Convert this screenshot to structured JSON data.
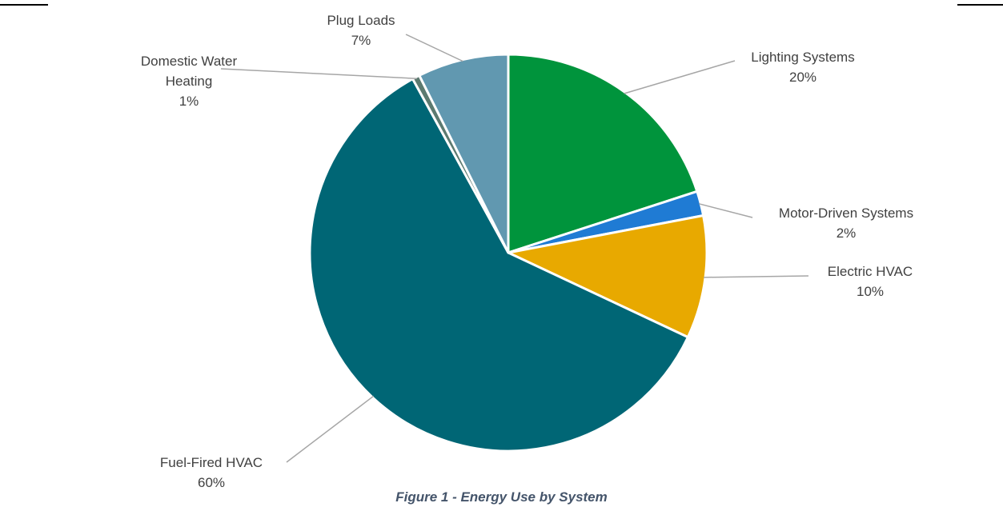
{
  "caption": "Figure 1 - Energy Use by System",
  "chart_data": {
    "type": "pie",
    "title": "",
    "slices": [
      {
        "label_lines": [
          "Lighting Systems"
        ],
        "value": 20,
        "value_label": "20%",
        "color": "#00943c"
      },
      {
        "label_lines": [
          "Motor-Driven Systems"
        ],
        "value": 2,
        "value_label": "2%",
        "color": "#1f7bd4"
      },
      {
        "label_lines": [
          "Electric HVAC"
        ],
        "value": 10,
        "value_label": "10%",
        "color": "#e8a900"
      },
      {
        "label_lines": [
          "Fuel-Fired HVAC"
        ],
        "value": 60,
        "value_label": "60%",
        "color": "#006675"
      },
      {
        "label_lines": [
          "Domestic Water",
          "Heating"
        ],
        "value": 0.6,
        "value_label": "1%",
        "color": "#5c7a70"
      },
      {
        "label_lines": [
          "Plug Loads"
        ],
        "value": 7.4,
        "value_label": "7%",
        "color": "#6198b0"
      }
    ],
    "start_angle_deg": 0,
    "direction": "clockwise",
    "legend": "none",
    "data_labels": "outside with leader lines"
  }
}
